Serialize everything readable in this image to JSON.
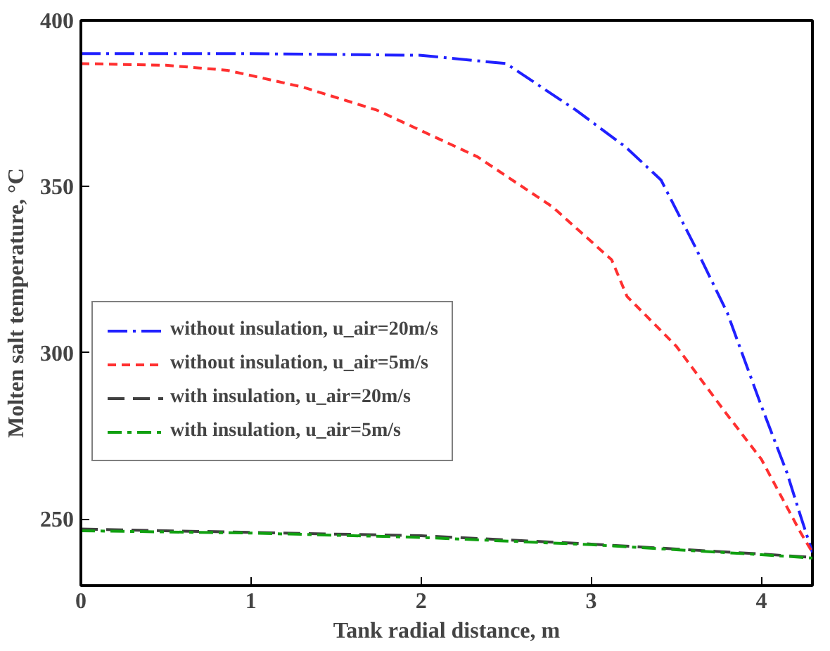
{
  "chart_data": {
    "type": "line",
    "xlabel": "Tank radial distance, m",
    "ylabel": "Molten salt temperature, °C",
    "xlim": [
      0,
      4.3
    ],
    "ylim": [
      230,
      400
    ],
    "xticks": [
      0,
      1,
      2,
      3,
      4
    ],
    "yticks": [
      250,
      300,
      350,
      400
    ],
    "grid": false,
    "legend": "left",
    "line_style": "dashed",
    "marker": "none",
    "series": [
      {
        "name": "without insulation, u_air=20m/s",
        "color": "#2020ff",
        "x": [
          0,
          1,
          2,
          2.5,
          2.91,
          3.2,
          3.41,
          3.61,
          3.8,
          4.0,
          4.15,
          4.23,
          4.3
        ],
        "values": [
          390,
          390,
          389.5,
          387,
          373,
          362,
          352,
          332,
          312,
          284,
          264,
          251,
          240
        ]
      },
      {
        "name": "without insulation, u_air=5m/s",
        "color": "#ff3030",
        "x": [
          0,
          0.5,
          0.86,
          1.3,
          1.74,
          2.33,
          2.77,
          3.12,
          3.21,
          3.5,
          3.79,
          4.0,
          4.23,
          4.3
        ],
        "values": [
          387,
          386.5,
          385,
          380,
          373,
          359,
          344,
          328,
          317,
          302,
          282,
          268,
          246,
          240
        ]
      },
      {
        "name": "with insulation, u_air=20m/s",
        "color": "#404040",
        "x": [
          0,
          1,
          2,
          3,
          3.5,
          4.0,
          4.3
        ],
        "values": [
          247,
          246,
          245,
          242.5,
          241,
          239.5,
          238.5
        ]
      },
      {
        "name": "with insulation, u_air=5m/s",
        "color": "#10a010",
        "x": [
          0,
          1,
          2,
          3,
          3.5,
          4.0,
          4.3
        ],
        "values": [
          246.5,
          245.8,
          244.5,
          242.3,
          240.8,
          239.3,
          238.3
        ]
      }
    ]
  }
}
